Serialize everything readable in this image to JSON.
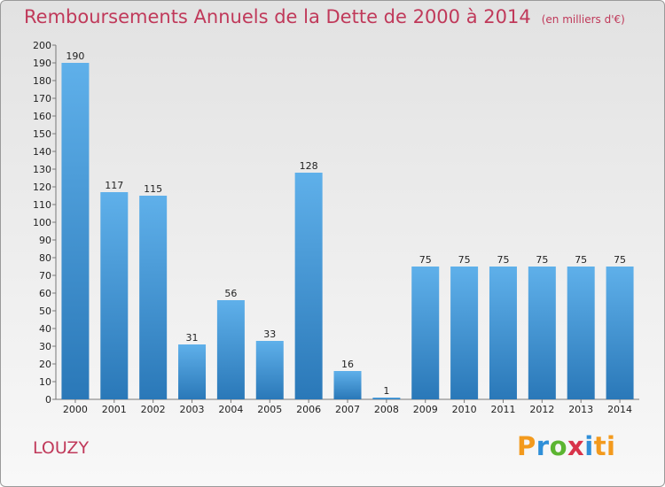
{
  "header": {
    "title": "Remboursements Annuels de la Dette de 2000 à 2014",
    "unit": "(en milliers d'€)"
  },
  "footer": {
    "commune": "LOUZY",
    "logo_letters": [
      "P",
      "r",
      "o",
      "x",
      "i",
      "ti"
    ]
  },
  "colors": {
    "title": "#c0395a",
    "bar_top": "#5fb0ea",
    "bar_bottom": "#2a78b8"
  },
  "chart_data": {
    "type": "bar",
    "categories": [
      "2000",
      "2001",
      "2002",
      "2003",
      "2004",
      "2005",
      "2006",
      "2007",
      "2008",
      "2009",
      "2010",
      "2011",
      "2012",
      "2013",
      "2014"
    ],
    "values": [
      190,
      117,
      115,
      31,
      56,
      33,
      128,
      16,
      1,
      75,
      75,
      75,
      75,
      75,
      75
    ],
    "title": "Remboursements Annuels de la Dette de 2000 à 2014",
    "xlabel": "",
    "ylabel": "",
    "ylim": [
      0,
      200
    ],
    "ytick_step": 10,
    "grid": false,
    "data_labels": true
  }
}
